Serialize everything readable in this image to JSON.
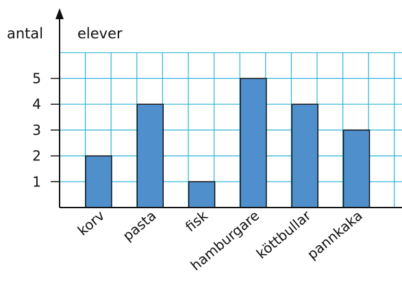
{
  "chart_data": {
    "type": "bar",
    "ylabel_left": "antal",
    "ylabel_right": "elever",
    "categories": [
      "korv",
      "pasta",
      "fisk",
      "hamburgare",
      "köttbullar",
      "pannkaka"
    ],
    "values": [
      2,
      4,
      1,
      5,
      4,
      3
    ],
    "yticks": [
      1,
      2,
      3,
      4,
      5
    ],
    "ylim": [
      0,
      6
    ],
    "grid": true,
    "colors": {
      "bar": "#4f8fcb",
      "bar_stroke": "#111111",
      "grid": "#27b2d6",
      "axis": "#111111"
    }
  }
}
